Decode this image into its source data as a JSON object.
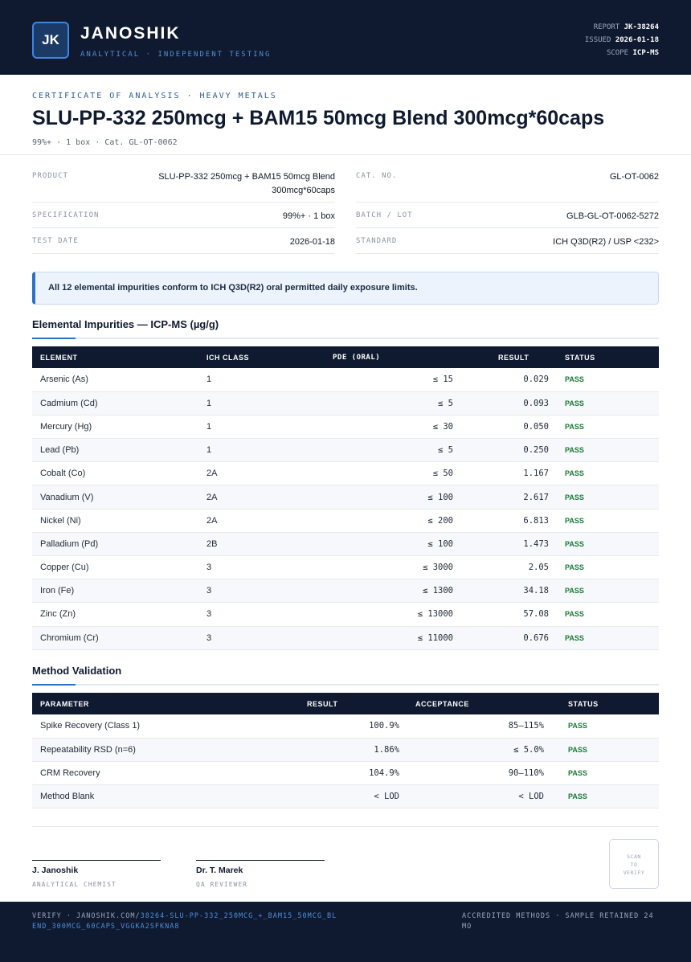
{
  "header": {
    "logo_initials": "JK",
    "brand": "JANOSHIK",
    "tagline": "ANALYTICAL · INDEPENDENT TESTING",
    "report_label": "REPORT",
    "report_value": "JK-38264",
    "issued_label": "ISSUED",
    "issued_value": "2026-01-18",
    "scope_label": "SCOPE",
    "scope_value": "ICP-MS"
  },
  "document": {
    "kicker": "CERTIFICATE OF ANALYSIS · HEAVY METALS",
    "title": "SLU-PP-332 250mcg + BAM15 50mcg Blend 300mcg*60caps",
    "subtitle": "99%+ · 1 box · Cat. GL-OT-0062"
  },
  "info": {
    "product_label": "PRODUCT",
    "product_value": "SLU-PP-332 250mcg + BAM15 50mcg Blend 300mcg*60caps",
    "cat_label": "CAT. NO.",
    "cat_value": "GL-OT-0062",
    "spec_label": "SPECIFICATION",
    "spec_value": "99%+ · 1 box",
    "batch_label": "BATCH / LOT",
    "batch_value": "GLB-GL-OT-0062-5272",
    "date_label": "TEST DATE",
    "date_value": "2026-01-18",
    "standard_label": "STANDARD",
    "standard_value": "ICH Q3D(R2) / USP <232>"
  },
  "notice": "All 12 elemental impurities conform to ICH Q3D(R2) oral permitted daily exposure limits.",
  "impurities": {
    "title": "Elemental Impurities — ICP-MS (µg/g)",
    "headers": [
      "ELEMENT",
      "ICH CLASS",
      "PDE (ORAL)",
      "RESULT",
      "STATUS"
    ],
    "rows": [
      {
        "element": "Arsenic (As)",
        "class": "1",
        "pde": "≤ 15",
        "result": "0.029",
        "status": "PASS"
      },
      {
        "element": "Cadmium (Cd)",
        "class": "1",
        "pde": "≤ 5",
        "result": "0.093",
        "status": "PASS"
      },
      {
        "element": "Mercury (Hg)",
        "class": "1",
        "pde": "≤ 30",
        "result": "0.050",
        "status": "PASS"
      },
      {
        "element": "Lead (Pb)",
        "class": "1",
        "pde": "≤ 5",
        "result": "0.250",
        "status": "PASS"
      },
      {
        "element": "Cobalt (Co)",
        "class": "2A",
        "pde": "≤ 50",
        "result": "1.167",
        "status": "PASS"
      },
      {
        "element": "Vanadium (V)",
        "class": "2A",
        "pde": "≤ 100",
        "result": "2.617",
        "status": "PASS"
      },
      {
        "element": "Nickel (Ni)",
        "class": "2A",
        "pde": "≤ 200",
        "result": "6.813",
        "status": "PASS"
      },
      {
        "element": "Palladium (Pd)",
        "class": "2B",
        "pde": "≤ 100",
        "result": "1.473",
        "status": "PASS"
      },
      {
        "element": "Copper (Cu)",
        "class": "3",
        "pde": "≤ 3000",
        "result": "2.05",
        "status": "PASS"
      },
      {
        "element": "Iron (Fe)",
        "class": "3",
        "pde": "≤ 1300",
        "result": "34.18",
        "status": "PASS"
      },
      {
        "element": "Zinc (Zn)",
        "class": "3",
        "pde": "≤ 13000",
        "result": "57.08",
        "status": "PASS"
      },
      {
        "element": "Chromium (Cr)",
        "class": "3",
        "pde": "≤ 11000",
        "result": "0.676",
        "status": "PASS"
      }
    ]
  },
  "validation": {
    "title": "Method Validation",
    "headers": [
      "PARAMETER",
      "RESULT",
      "ACCEPTANCE",
      "STATUS"
    ],
    "rows": [
      {
        "parameter": "Spike Recovery (Class 1)",
        "result": "100.9%",
        "acceptance": "85–115%",
        "status": "PASS"
      },
      {
        "parameter": "Repeatability RSD (n=6)",
        "result": "1.86%",
        "acceptance": "≤ 5.0%",
        "status": "PASS"
      },
      {
        "parameter": "CRM Recovery",
        "result": "104.9%",
        "acceptance": "90–110%",
        "status": "PASS"
      },
      {
        "parameter": "Method Blank",
        "result": "< LOD",
        "acceptance": "< LOD",
        "status": "PASS"
      }
    ]
  },
  "signatures": [
    {
      "name": "J. Janoshik",
      "role": "ANALYTICAL CHEMIST"
    },
    {
      "name": "Dr. T. Marek",
      "role": "QA REVIEWER"
    }
  ],
  "qr_text": [
    "SCAN",
    "TO",
    "VERIFY"
  ],
  "footer": {
    "verify_prefix": "VERIFY · JANOSHIK.COM/",
    "verify_link": "38264-SLU-PP-332_250MCG_+_BAM15_50MCG_BLEND_300MCG_60CAPS_VGGKA2SFKNA8",
    "right": "ACCREDITED METHODS · SAMPLE RETAINED 24 MO"
  },
  "colors": {
    "navy": "#0f1a30",
    "accent": "#2f6fc6",
    "pass": "#1a7a36"
  }
}
